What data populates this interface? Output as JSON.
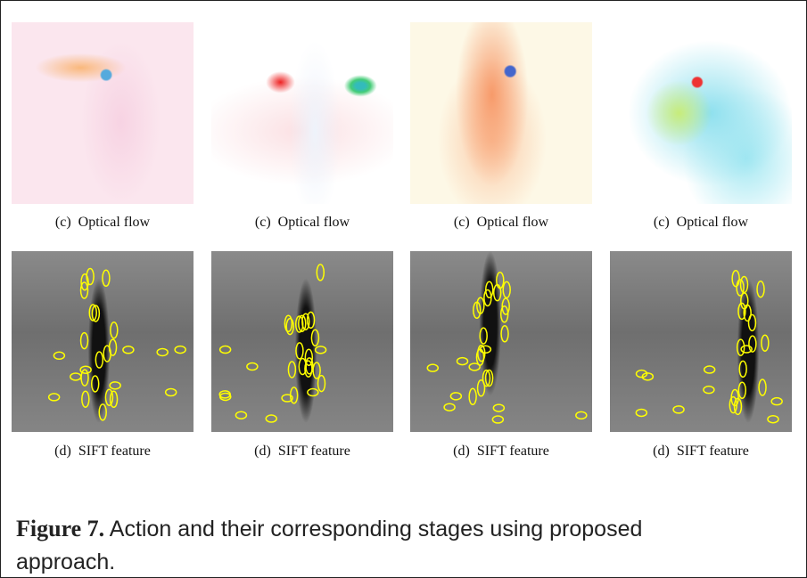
{
  "optical_flow_captions": [
    "(c)  Optical flow",
    "(c)  Optical flow",
    "(c)  Optical flow",
    "(c)  Optical flow"
  ],
  "sift_captions": [
    "(d)  SIFT feature",
    "(d)  SIFT feature",
    "(d)  SIFT feature",
    "(d)  SIFT feature"
  ],
  "figure_caption": {
    "label": "Figure 7.",
    "text": "Action and their corresponding stages using proposed approach."
  }
}
